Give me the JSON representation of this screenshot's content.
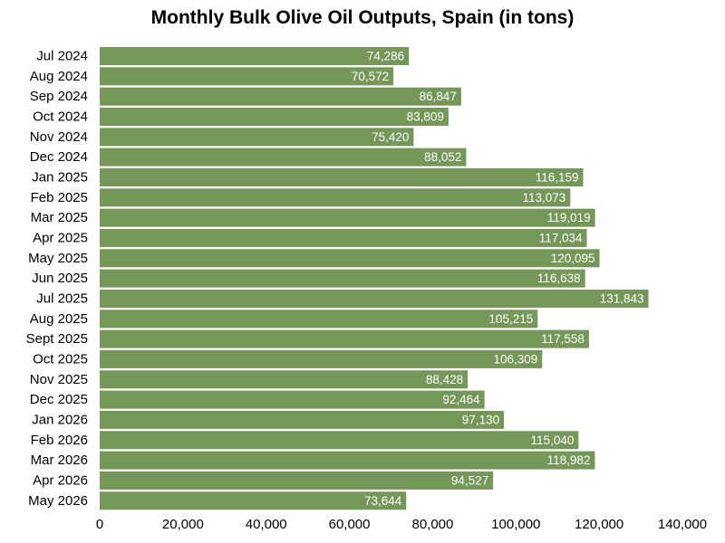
{
  "chart_data": {
    "type": "bar",
    "orientation": "horizontal",
    "title": "Monthly Bulk Olive Oil Outputs, Spain (in tons)",
    "xlabel": "",
    "ylabel": "",
    "categories": [
      "Jul 2024",
      "Aug 2024",
      "Sep 2024",
      "Oct 2024",
      "Nov 2024",
      "Dec 2024",
      "Jan 2025",
      "Feb 2025",
      "Mar 2025",
      "Apr 2025",
      "May 2025",
      "Jun 2025",
      "Jul 2025",
      "Aug 2025",
      "Sept 2025",
      "Oct 2025",
      "Nov 2025",
      "Dec 2025",
      "Jan 2026",
      "Feb 2026",
      "Mar 2026",
      "Apr 2026",
      "May 2026"
    ],
    "values": [
      74286,
      70572,
      86847,
      83809,
      75420,
      88052,
      116159,
      113073,
      119019,
      117034,
      120095,
      116638,
      131843,
      105215,
      117558,
      106309,
      88428,
      92464,
      97130,
      115040,
      118982,
      94527,
      73644
    ],
    "value_labels": [
      "74,286",
      "70,572",
      "86,847",
      "83,809",
      "75,420",
      "88,052",
      "116,159",
      "113,073",
      "119,019",
      "117,034",
      "120,095",
      "116,638",
      "131,843",
      "105,215",
      "117,558",
      "106,309",
      "88,428",
      "92,464",
      "97,130",
      "115,040",
      "118,982",
      "94,527",
      "73,644"
    ],
    "xlim": [
      0,
      140000
    ],
    "x_ticks": [
      0,
      20000,
      40000,
      60000,
      80000,
      100000,
      120000,
      140000
    ],
    "x_tick_labels": [
      "0",
      "20,000",
      "40,000",
      "60,000",
      "80,000",
      "100,000",
      "120,000",
      "140,000"
    ],
    "grid": false,
    "legend": "none",
    "bar_color": "#76975a"
  }
}
